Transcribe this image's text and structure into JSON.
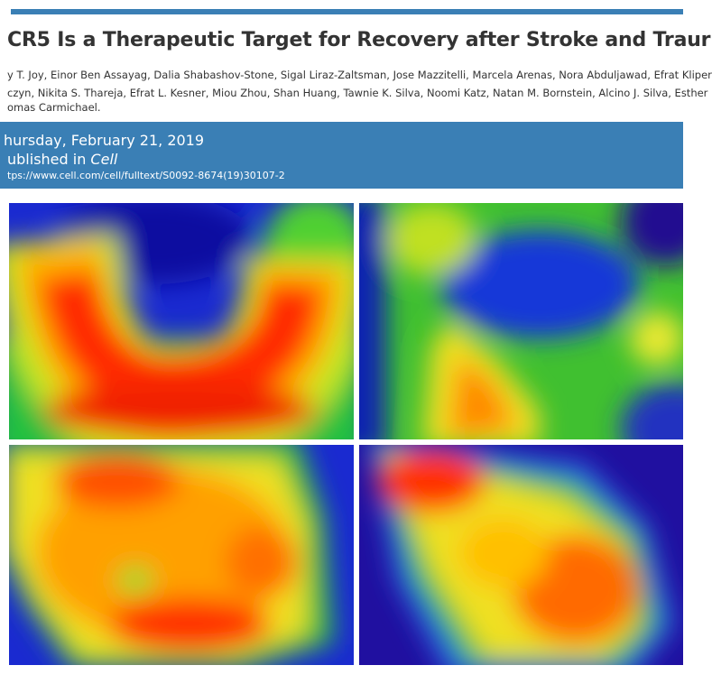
{
  "header": {
    "title": "CR5 Is a Therapeutic Target for Recovery after Stroke and Traur",
    "authors": [
      "y T. Joy, Einor Ben Assayag, Dalia Shabashov-Stone, Sigal Liraz-Zaltsman, Jose Mazzitelli, Marcela Arenas, Nora Abduljawad, Efrat Kliper",
      "czyn, Nikita S. Thareja, Efrat L. Kesner, Miou Zhou, Shan Huang, Tawnie K. Silva, Noomi Katz, Natan M. Bornstein, Alcino J. Silva, Esther",
      "omas Carmichael."
    ]
  },
  "info": {
    "date": "hursday, February 21, 2019",
    "published_label": "ublished in ",
    "journal": "Cell",
    "url": "tps://www.cell.com/cell/fulltext/S0092-8674(19)30107-2"
  }
}
